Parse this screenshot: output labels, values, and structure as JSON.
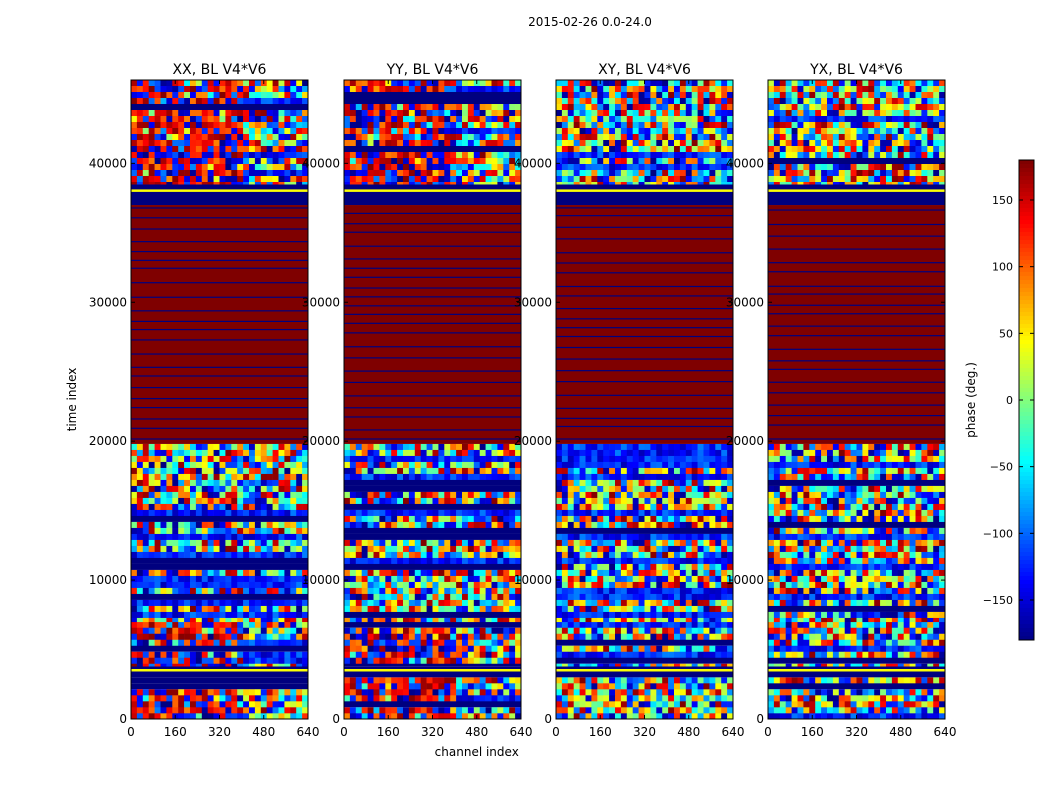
{
  "suptitle": "2015-02-26 0.0-24.0",
  "colors": {
    "low": "#00007f",
    "high": "#7f0000"
  },
  "colorbar": {
    "label": "phase (deg.)",
    "range": [
      -180,
      180
    ],
    "ticks": [
      150,
      100,
      50,
      0,
      -50,
      -100,
      -150
    ],
    "tick_labels": [
      "150",
      "100",
      "50",
      "0",
      "−50",
      "−100",
      "−150"
    ],
    "cmap": "jet"
  },
  "chart_data": [
    {
      "type": "heatmap",
      "title": "XX, BL V4*V6",
      "xlabel": "",
      "ylabel": "time index",
      "xlim": [
        0,
        640
      ],
      "ylim": [
        0,
        46000
      ],
      "xticks": [
        "0",
        "160",
        "320",
        "480",
        "640"
      ],
      "yticks": [
        "0",
        "10000",
        "20000",
        "30000",
        "40000"
      ],
      "value_range_deg": [
        -180,
        180
      ],
      "bands": [
        {
          "from": 0,
          "to": 3000,
          "pattern": "noise-red-left"
        },
        {
          "from": 3000,
          "to": 3800,
          "pattern": "blue"
        },
        {
          "from": 3800,
          "to": 7000,
          "pattern": "noise-red-left"
        },
        {
          "from": 7000,
          "to": 19800,
          "pattern": "noise"
        },
        {
          "from": 19800,
          "to": 37000,
          "pattern": "red-flagged"
        },
        {
          "from": 37000,
          "to": 38500,
          "pattern": "blue"
        },
        {
          "from": 38500,
          "to": 46000,
          "pattern": "noise-red-left"
        }
      ]
    },
    {
      "type": "heatmap",
      "title": "YY, BL V4*V6",
      "xlabel": "channel index",
      "ylabel": "",
      "xlim": [
        0,
        640
      ],
      "ylim": [
        0,
        46000
      ],
      "xticks": [
        "0",
        "160",
        "320",
        "480",
        "640"
      ],
      "yticks": [
        "0",
        "10000",
        "20000",
        "30000",
        "40000"
      ],
      "value_range_deg": [
        -180,
        180
      ],
      "bands": [
        {
          "from": 0,
          "to": 3000,
          "pattern": "noise-red-left"
        },
        {
          "from": 3000,
          "to": 3800,
          "pattern": "blue"
        },
        {
          "from": 3800,
          "to": 7000,
          "pattern": "noise-red-left"
        },
        {
          "from": 7000,
          "to": 19800,
          "pattern": "noise"
        },
        {
          "from": 19800,
          "to": 37000,
          "pattern": "red-flagged"
        },
        {
          "from": 37000,
          "to": 38500,
          "pattern": "blue"
        },
        {
          "from": 38500,
          "to": 46000,
          "pattern": "noise-red-left"
        }
      ]
    },
    {
      "type": "heatmap",
      "title": "XY, BL V4*V6",
      "xlabel": "",
      "ylabel": "",
      "xlim": [
        0,
        640
      ],
      "ylim": [
        0,
        46000
      ],
      "xticks": [
        "0",
        "160",
        "320",
        "480",
        "640"
      ],
      "yticks": [
        "0",
        "10000",
        "20000",
        "30000",
        "40000"
      ],
      "value_range_deg": [
        -180,
        180
      ],
      "bands": [
        {
          "from": 0,
          "to": 3000,
          "pattern": "noise"
        },
        {
          "from": 3000,
          "to": 3800,
          "pattern": "blue"
        },
        {
          "from": 3800,
          "to": 7000,
          "pattern": "noise"
        },
        {
          "from": 7000,
          "to": 19800,
          "pattern": "noise"
        },
        {
          "from": 19800,
          "to": 37000,
          "pattern": "red-flagged"
        },
        {
          "from": 37000,
          "to": 38500,
          "pattern": "blue"
        },
        {
          "from": 38500,
          "to": 46000,
          "pattern": "noise"
        }
      ]
    },
    {
      "type": "heatmap",
      "title": "YX, BL V4*V6",
      "xlabel": "",
      "ylabel": "",
      "xlim": [
        0,
        640
      ],
      "ylim": [
        0,
        46000
      ],
      "xticks": [
        "0",
        "160",
        "320",
        "480",
        "640"
      ],
      "yticks": [
        "0",
        "10000",
        "20000",
        "30000",
        "40000"
      ],
      "value_range_deg": [
        -180,
        180
      ],
      "bands": [
        {
          "from": 0,
          "to": 3000,
          "pattern": "noise"
        },
        {
          "from": 3000,
          "to": 3800,
          "pattern": "blue"
        },
        {
          "from": 3800,
          "to": 7000,
          "pattern": "noise"
        },
        {
          "from": 7000,
          "to": 19800,
          "pattern": "noise"
        },
        {
          "from": 19800,
          "to": 37000,
          "pattern": "red-flagged"
        },
        {
          "from": 37000,
          "to": 38500,
          "pattern": "blue"
        },
        {
          "from": 38500,
          "to": 46000,
          "pattern": "noise"
        }
      ]
    }
  ]
}
